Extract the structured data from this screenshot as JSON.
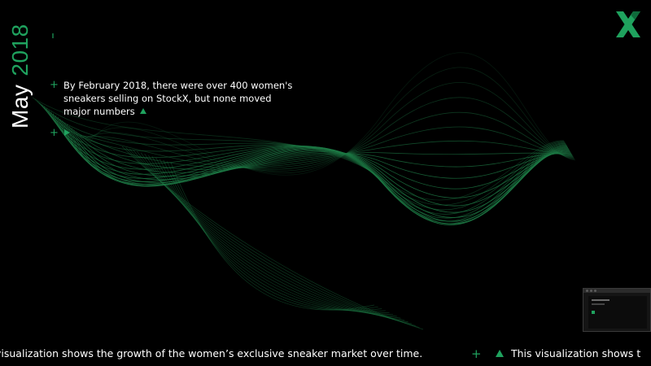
{
  "header": {
    "date_month": "May",
    "date_year": "2018"
  },
  "caption": {
    "text": "By February 2018, there were over 400 women's sneakers selling on StockX, but none moved major numbers"
  },
  "ticker": {
    "segment_left": "visualization shows the growth of the women’s exclusive sneaker market over time.",
    "segment_right": "This visualization shows t"
  },
  "brand": {
    "logo_icon": "stockx-x-logo-icon"
  },
  "colors": {
    "background": "#000000",
    "accent": "#1fa25e",
    "text": "#ffffff",
    "wave": "#1d7a45"
  },
  "icons": {
    "plus": "plus-icon",
    "triangle_up": "triangle-up-icon",
    "play": "play-icon",
    "dash": "dash-icon"
  }
}
